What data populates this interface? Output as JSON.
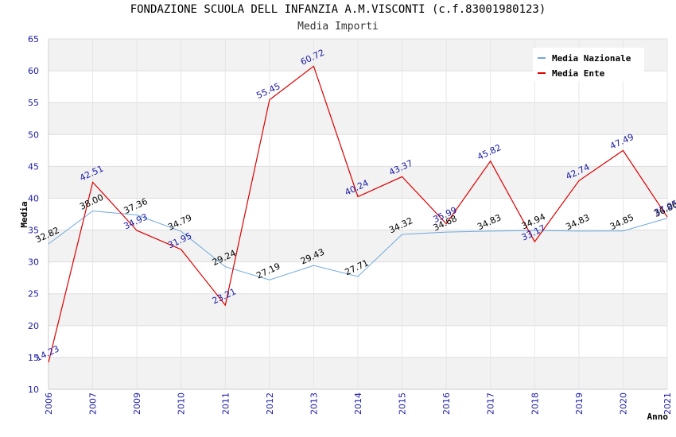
{
  "header": {
    "title": "FONDAZIONE SCUOLA DELL INFANZIA A.M.VISCONTI (c.f.83001980123)",
    "subtitle": "Media Importi"
  },
  "chart_data": {
    "type": "line",
    "title": "FONDAZIONE SCUOLA DELL INFANZIA A.M.VISCONTI (c.f.83001980123)",
    "subtitle": "Media Importi",
    "xlabel": "Anno",
    "ylabel": "Media",
    "ylim": [
      10,
      65
    ],
    "yticks": [
      "10",
      "15",
      "20",
      "25",
      "30",
      "35",
      "40",
      "45",
      "50",
      "55",
      "60",
      "65"
    ],
    "categories": [
      "2006",
      "2007",
      "2009",
      "2010",
      "2011",
      "2012",
      "2013",
      "2014",
      "2015",
      "2016",
      "2017",
      "2018",
      "2019",
      "2020",
      "2021"
    ],
    "grid": "horizontal bands",
    "legend_position": "top-right",
    "series": [
      {
        "name": "Media Nazionale",
        "color": "#6fa8dc",
        "label_color": "#000000",
        "values": [
          32.82,
          38.0,
          37.36,
          34.79,
          29.24,
          27.19,
          29.43,
          27.71,
          34.32,
          34.68,
          34.83,
          34.94,
          34.83,
          34.85,
          36.86
        ],
        "labels": [
          "32.82",
          "38.00",
          "37.36",
          "34.79",
          "29.24",
          "27.19",
          "29.43",
          "27.71",
          "34.32",
          "34.68",
          "34.83",
          "34.94",
          "34.83",
          "34.85",
          "36.86"
        ]
      },
      {
        "name": "Media Ente",
        "color": "#dd0000",
        "label_color": "#1a1aa6",
        "values": [
          14.23,
          42.51,
          34.93,
          31.95,
          23.21,
          55.45,
          60.72,
          40.24,
          43.37,
          35.99,
          45.82,
          33.17,
          42.74,
          47.49,
          37.05
        ],
        "labels": [
          "14.23",
          "42.51",
          "34.93",
          "31.95",
          "23.21",
          "55.45",
          "60.72",
          "40.24",
          "43.37",
          "35.99",
          "45.82",
          "33.17",
          "42.74",
          "47.49",
          "37.05"
        ]
      }
    ]
  }
}
